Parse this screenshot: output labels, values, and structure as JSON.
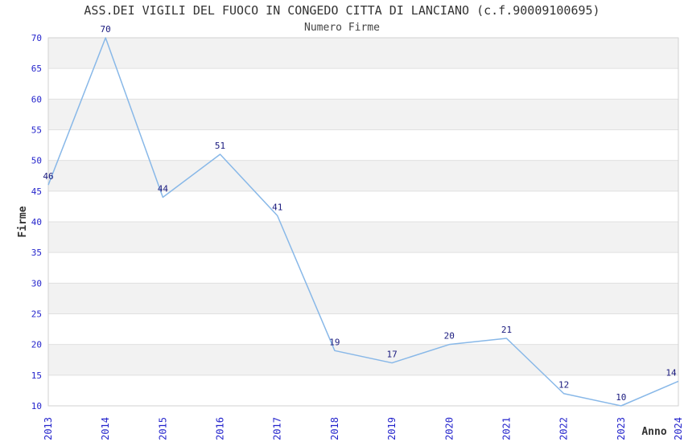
{
  "chart_data": {
    "type": "line",
    "title": "ASS.DEI VIGILI DEL FUOCO IN CONGEDO CITTA DI LANCIANO (c.f.90009100695)",
    "subtitle": "Numero Firme",
    "xlabel": "Anno",
    "ylabel": "Firme",
    "categories": [
      "2013",
      "2014",
      "2015",
      "2016",
      "2017",
      "2018",
      "2019",
      "2020",
      "2021",
      "2022",
      "2023",
      "2024"
    ],
    "series": [
      {
        "name": "Numero Firme",
        "values": [
          46,
          70,
          44,
          51,
          41,
          19,
          17,
          20,
          21,
          12,
          10,
          14
        ]
      }
    ],
    "ylim": [
      10,
      70
    ],
    "ytick_step": 5,
    "yticks": [
      10,
      15,
      20,
      25,
      30,
      35,
      40,
      45,
      50,
      55,
      60,
      65,
      70
    ],
    "grid": "horizontal-bands",
    "legend": "none",
    "data_labels": "on",
    "colors": {
      "line": "#88b8e8",
      "tick_label": "#2525cc",
      "data_label": "#1a1a7e",
      "band": "#f2f2f2",
      "gridline": "#e0e0e0",
      "border": "#d2d2d2",
      "axis_label": "#333333",
      "title": "#333333",
      "background": "#ffffff"
    }
  }
}
